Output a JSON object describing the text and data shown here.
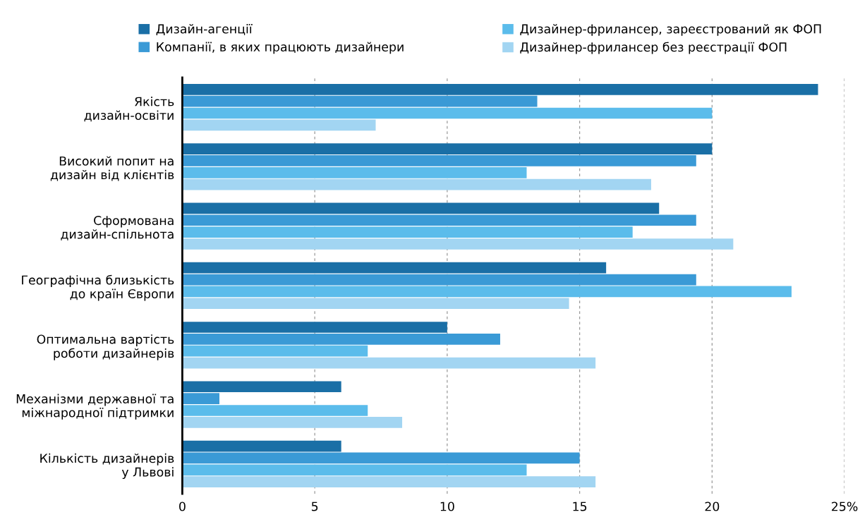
{
  "chart_data": {
    "type": "bar",
    "orientation": "horizontal",
    "categories": [
      "Якість\nдизайн-освіти",
      "Високий попит на\nдизайн від клієнтів",
      "Сформована\nдизайн-спільнота",
      "Географічна близькість\nдо країн Європи",
      "Оптимальна вартість\nроботи дизайнерів",
      "Механізми державної та\nміжнародної підтримки",
      "Кількість дизайнерів\nу Львові"
    ],
    "series": [
      {
        "name": "Дизайн-агенції",
        "color": "#1a6fa6",
        "values": [
          24,
          20,
          18,
          16,
          10,
          6,
          6
        ]
      },
      {
        "name": "Компанії, в яких працюють дизайнери",
        "color": "#3a9ad6",
        "values": [
          13.4,
          19.4,
          19.4,
          19.4,
          12,
          1.4,
          15
        ]
      },
      {
        "name": "Дизайнер-фрилансер, зареєстрований як ФОП",
        "color": "#5bbceb",
        "values": [
          20,
          13,
          17,
          23,
          7,
          7,
          13
        ]
      },
      {
        "name": "Дизайнер-фрилансер без реєстрації ФОП",
        "color": "#a2d5f2",
        "values": [
          7.3,
          17.7,
          20.8,
          14.6,
          15.6,
          8.3,
          15.6
        ]
      }
    ],
    "xlim": [
      0,
      25
    ],
    "xticks": [
      0,
      5,
      10,
      15,
      20,
      {
        "value": 25,
        "label": "25%"
      }
    ],
    "grid": "x",
    "legend": "top"
  }
}
